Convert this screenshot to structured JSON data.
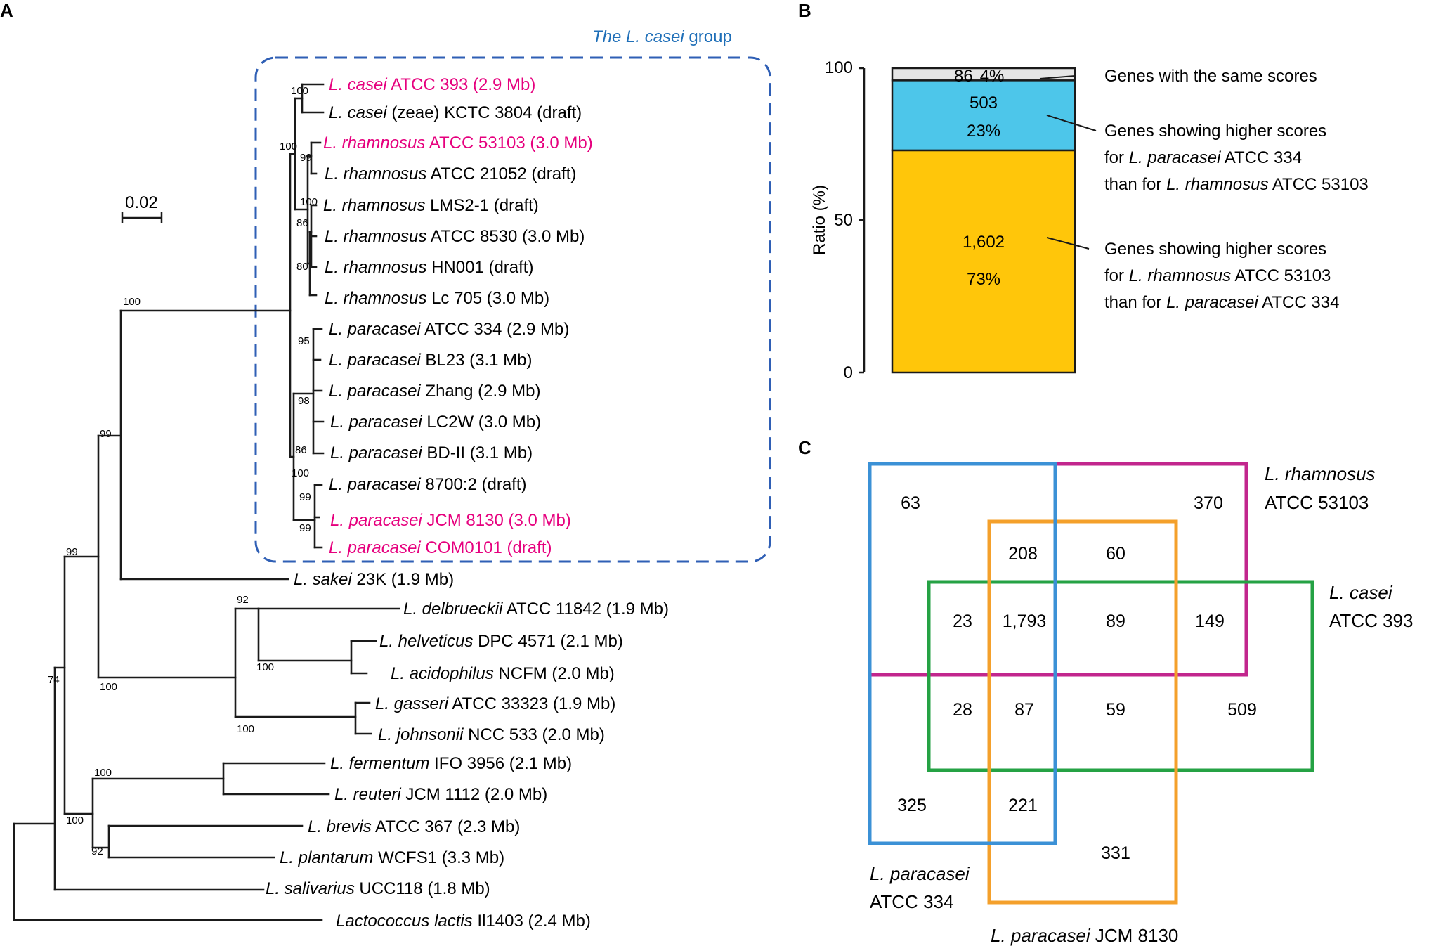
{
  "panels": {
    "a": "A",
    "b": "B",
    "c": "C"
  },
  "colors": {
    "highlight": "#e6007e",
    "group_title": "#1f6fb8",
    "group_box": "#2f5fb5",
    "bar_same": "#e6e6e6",
    "bar_paracasei": "#4dc6ea",
    "bar_rhamnosus": "#ffc60a",
    "venn_paracasei_334": "#3b91d6",
    "venn_rhamnosus": "#c2268d",
    "venn_jcm8130": "#f4a02b",
    "venn_casei": "#25a244"
  },
  "tree": {
    "group_title_italic": "The L. casei",
    "group_title_rest": " group",
    "scale_bar": "0.02",
    "taxa": [
      {
        "genus": "L. casei",
        "rest": " ATCC 393 (2.9 Mb)",
        "highlight": true
      },
      {
        "genus": "L. casei",
        "rest": " (zeae) KCTC 3804 (draft)",
        "highlight": false
      },
      {
        "genus": "L. rhamnosus",
        "rest": " ATCC 53103 (3.0 Mb)",
        "highlight": true
      },
      {
        "genus": "L. rhamnosus",
        "rest": " ATCC 21052 (draft)",
        "highlight": false
      },
      {
        "genus": "L. rhamnosus",
        "rest": " LMS2-1 (draft)",
        "highlight": false
      },
      {
        "genus": "L. rhamnosus",
        "rest": " ATCC 8530 (3.0 Mb)",
        "highlight": false
      },
      {
        "genus": "L. rhamnosus",
        "rest": " HN001 (draft)",
        "highlight": false
      },
      {
        "genus": "L. rhamnosus",
        "rest": " Lc 705 (3.0 Mb)",
        "highlight": false
      },
      {
        "genus": "L. paracasei",
        "rest": " ATCC 334 (2.9 Mb)",
        "highlight": false
      },
      {
        "genus": "L. paracasei",
        "rest": " BL23 (3.1 Mb)",
        "highlight": false
      },
      {
        "genus": "L. paracasei",
        "rest": " Zhang (2.9 Mb)",
        "highlight": false
      },
      {
        "genus": "L. paracasei",
        "rest": " LC2W (3.0 Mb)",
        "highlight": false
      },
      {
        "genus": "L. paracasei",
        "rest": " BD-II (3.1 Mb)",
        "highlight": false
      },
      {
        "genus": "L. paracasei",
        "rest": " 8700:2 (draft)",
        "highlight": false
      },
      {
        "genus": "L. paracasei",
        "rest": " JCM 8130 (3.0 Mb)",
        "highlight": true
      },
      {
        "genus": "L. paracasei",
        "rest": " COM0101 (draft)",
        "highlight": true
      },
      {
        "genus": "L. sakei",
        "rest": " 23K (1.9 Mb)",
        "highlight": false
      },
      {
        "genus": "L. delbrueckii",
        "rest": " ATCC 11842 (1.9 Mb)",
        "highlight": false
      },
      {
        "genus": "L. helveticus",
        "rest": " DPC 4571 (2.1 Mb)",
        "highlight": false
      },
      {
        "genus": "L. acidophilus",
        "rest": " NCFM (2.0 Mb)",
        "highlight": false
      },
      {
        "genus": "L. gasseri",
        "rest": " ATCC 33323 (1.9 Mb)",
        "highlight": false
      },
      {
        "genus": "L. johnsonii",
        "rest": " NCC 533 (2.0 Mb)",
        "highlight": false
      },
      {
        "genus": "L. fermentum",
        "rest": " IFO 3956 (2.1 Mb)",
        "highlight": false
      },
      {
        "genus": "L. reuteri",
        "rest": " JCM 1112 (2.0 Mb)",
        "highlight": false
      },
      {
        "genus": "L. brevis",
        "rest": " ATCC 367 (2.3 Mb)",
        "highlight": false
      },
      {
        "genus": "L. plantarum",
        "rest": " WCFS1 (3.3 Mb)",
        "highlight": false
      },
      {
        "genus": "L. salivarius",
        "rest": " UCC118 (1.8 Mb)",
        "highlight": false
      },
      {
        "genus": "Lactococcus lactis",
        "rest": " Il1403 (2.4 Mb)",
        "highlight": false
      }
    ],
    "bootstrap": [
      "100",
      "100",
      "99",
      "100",
      "86",
      "80",
      "95",
      "98",
      "86",
      "100",
      "99",
      "99",
      "100",
      "99",
      "99",
      "92",
      "100",
      "100",
      "100",
      "100",
      "100",
      "92",
      "74"
    ]
  },
  "chart_data": {
    "type": "bar",
    "stacked": true,
    "ylabel": "Ratio (%)",
    "ylim": [
      0,
      100
    ],
    "yticks": [
      "0",
      "50",
      "100"
    ],
    "series": [
      {
        "name": "Genes showing higher scores for L. rhamnosus ATCC 53103 than for L. paracasei ATCC 334",
        "count": "1,602",
        "percent_label": "73%",
        "value": 73
      },
      {
        "name": "Genes showing higher scores for L. paracasei ATCC 334 than for L. rhamnosus ATCC 53103",
        "count": "503",
        "percent_label": "23%",
        "value": 23
      },
      {
        "name": "Genes with the same scores",
        "count": "86",
        "percent_label": "4%",
        "value": 4
      }
    ],
    "legend": {
      "same": "Genes with the same scores",
      "para_1": "Genes showing higher scores",
      "para_2_pre": "for ",
      "para_2_it": "L. paracasei",
      "para_2_post": " ATCC 334",
      "para_3_pre": "than for ",
      "para_3_it": "L. rhamnosus",
      "para_3_post": " ATCC 53103",
      "rham_1": "Genes showing higher scores",
      "rham_2_pre": "for ",
      "rham_2_it": "L. rhamnosus",
      "rham_2_post": " ATCC 53103",
      "rham_3_pre": "than for  ",
      "rham_3_it": "L. paracasei",
      "rham_3_post": " ATCC 334"
    }
  },
  "venn": {
    "labels": {
      "rhamnosus_it": "L. rhamnosus",
      "rhamnosus_strain": "ATCC 53103",
      "casei_it": "L. casei",
      "casei_strain": "ATCC 393",
      "para334_it": "L. paracasei",
      "para334_strain": "ATCC 334",
      "jcm_it": "L. paracasei",
      "jcm_strain": " JCM 8130"
    },
    "counts": [
      "63",
      "370",
      "208",
      "60",
      "23",
      "1,793",
      "89",
      "149",
      "28",
      "87",
      "59",
      "509",
      "325",
      "221",
      "331"
    ]
  }
}
